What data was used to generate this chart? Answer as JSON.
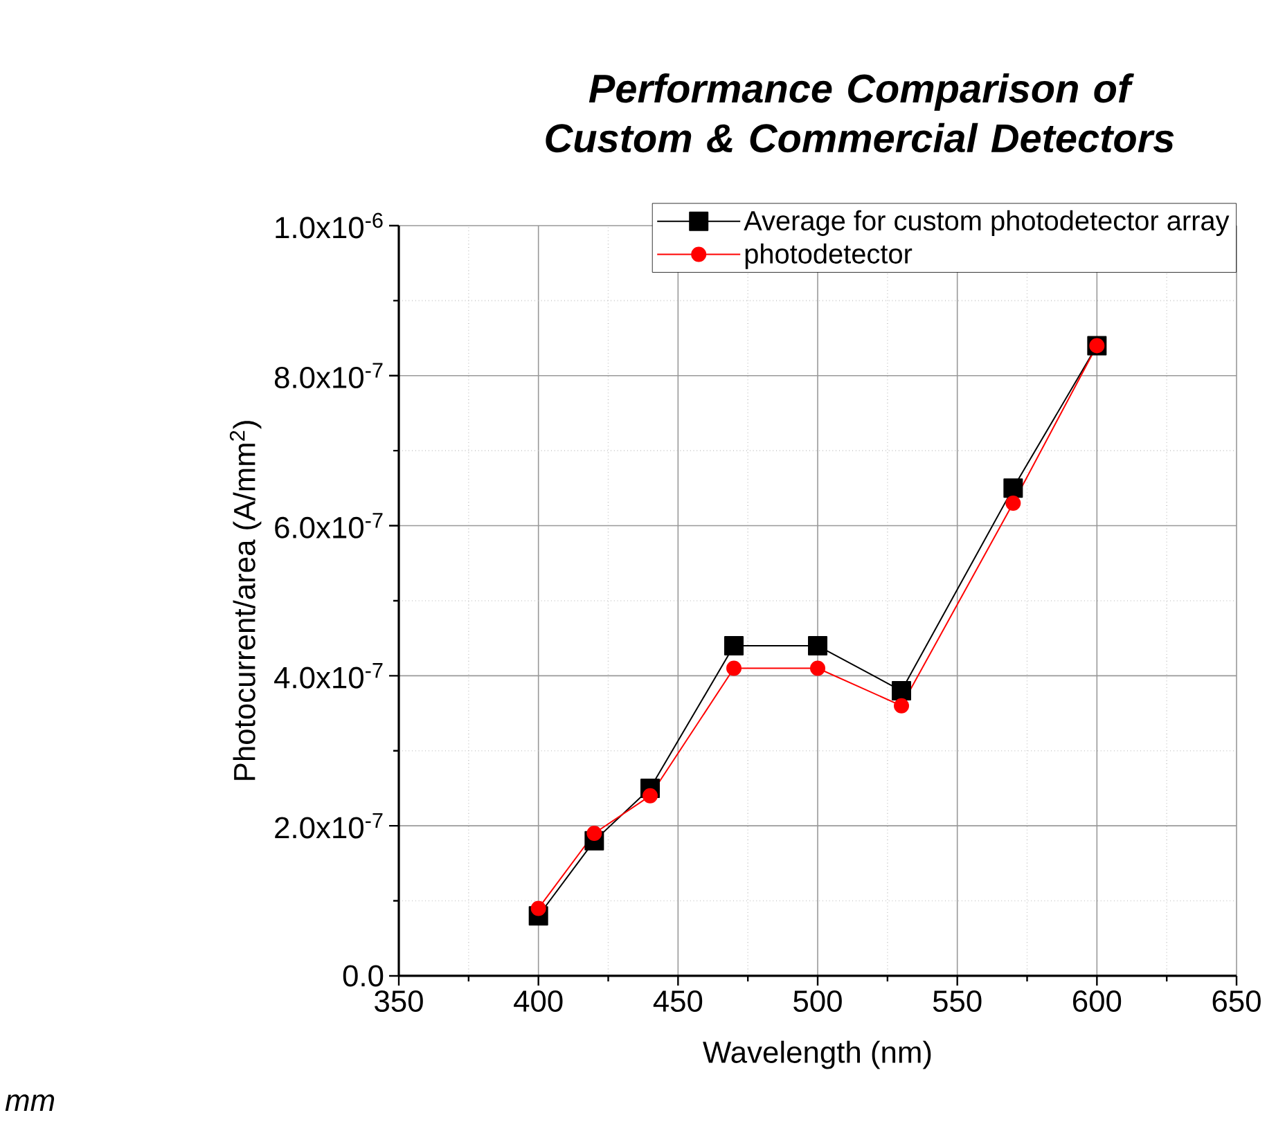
{
  "chart_data": {
    "type": "line",
    "title": "Performance Comparison of Custom & Commercial Detectors",
    "xlabel": "Wavelength (nm)",
    "ylabel": "Photocurrent/area (A/mm$^{2}$)",
    "x": [
      400,
      420,
      440,
      470,
      500,
      530,
      570,
      600
    ],
    "series": [
      {
        "name": "Average for custom photodetector array",
        "color": "#000000",
        "marker": "square",
        "values": [
          8e-08,
          1.8e-07,
          2.5e-07,
          4.4e-07,
          4.4e-07,
          3.8e-07,
          6.5e-07,
          8.4e-07
        ]
      },
      {
        "name": "photodetector",
        "color": "#ff0000",
        "marker": "circle",
        "values": [
          9e-08,
          1.9e-07,
          2.4e-07,
          4.1e-07,
          4.1e-07,
          3.6e-07,
          6.3e-07,
          8.4e-07
        ]
      }
    ],
    "xlim": [
      350,
      650
    ],
    "xticks": [
      350,
      400,
      450,
      500,
      550,
      600,
      650
    ],
    "ylim": [
      0,
      1e-06
    ],
    "yticks": [
      {
        "value": 0,
        "label": "0.0"
      },
      {
        "value": 2e-07,
        "label": "2.0x10$^{-7}$"
      },
      {
        "value": 4e-07,
        "label": "4.0x10$^{-7}$"
      },
      {
        "value": 6e-07,
        "label": "6.0x10$^{-7}$"
      },
      {
        "value": 8e-07,
        "label": "8.0x10$^{-7}$"
      },
      {
        "value": 1e-06,
        "label": "1.0x10$^{-6}$"
      }
    ],
    "grid": true,
    "legend": "top right",
    "line_style": "solid",
    "annotations": [
      "mm"
    ]
  }
}
